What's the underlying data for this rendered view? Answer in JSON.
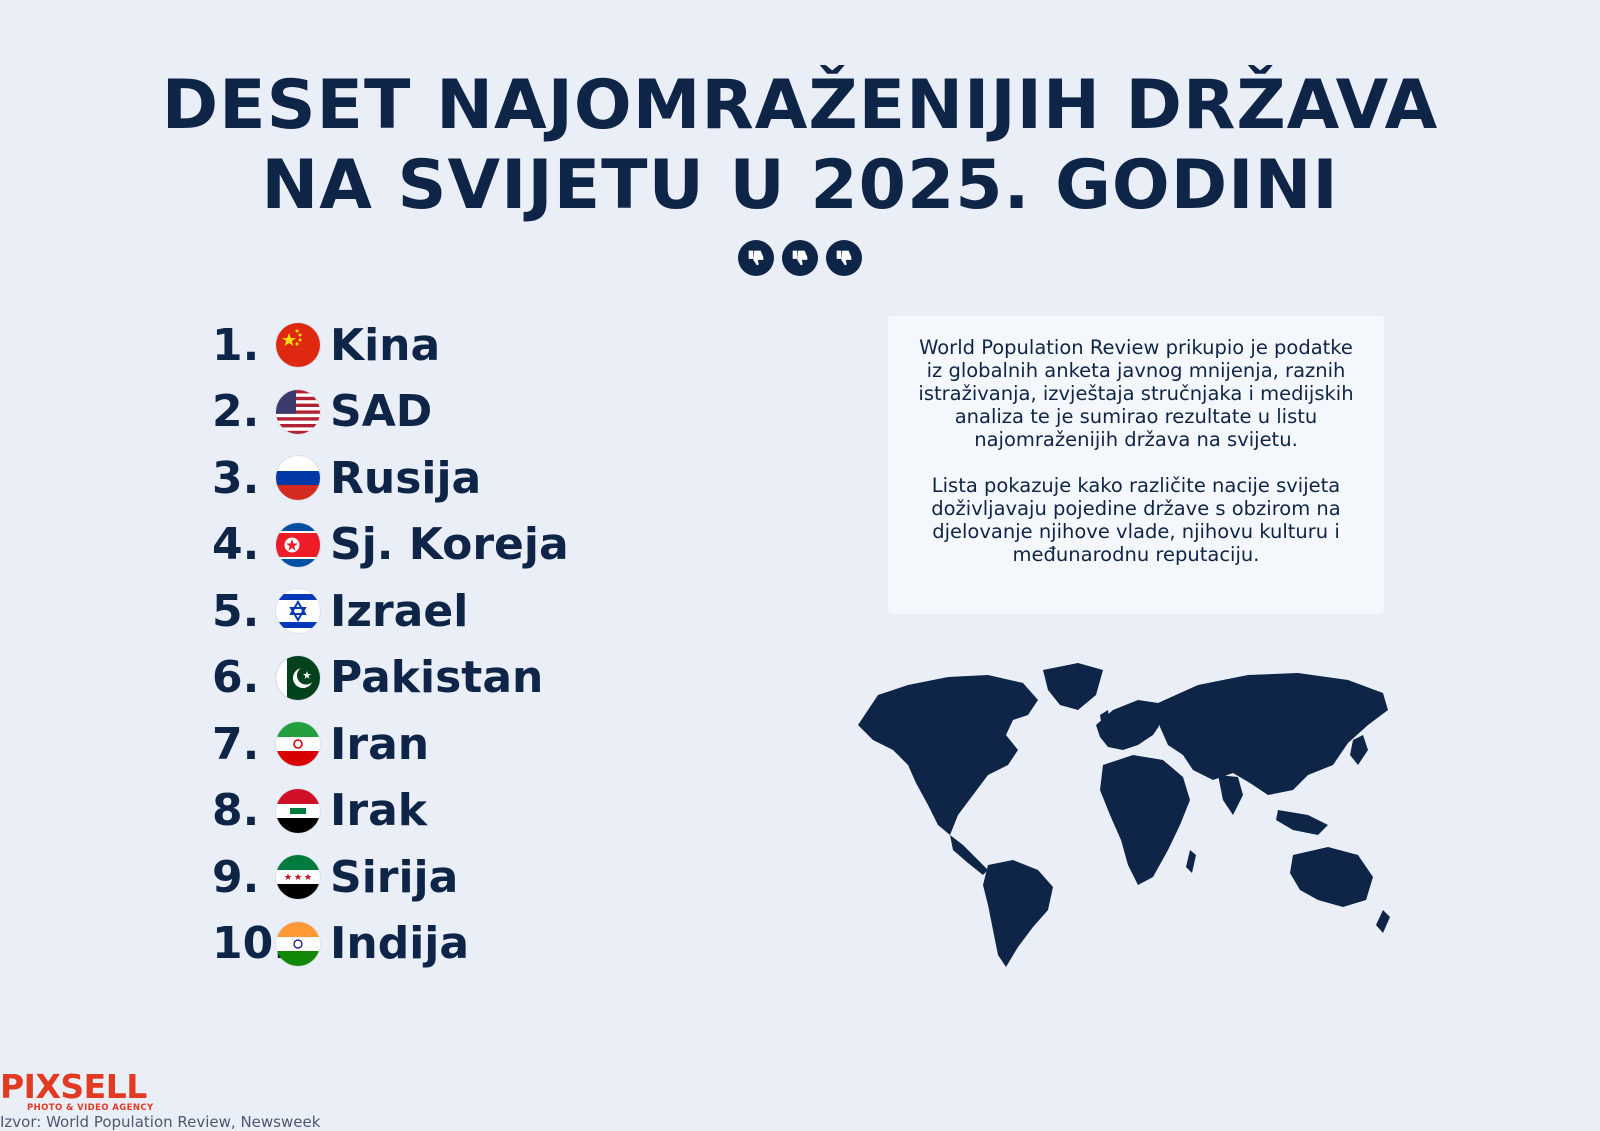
{
  "title": {
    "line1": "DESET NAJOMRAŽENIJIH DRŽAVA",
    "line2": "NA SVIJETU U 2025. GODINI"
  },
  "thumbs_icon": "thumbs-down-icon",
  "ranking": [
    {
      "rank": "1.",
      "country": "Kina",
      "flag": "china-flag-icon"
    },
    {
      "rank": "2.",
      "country": "SAD",
      "flag": "usa-flag-icon"
    },
    {
      "rank": "3.",
      "country": "Rusija",
      "flag": "russia-flag-icon"
    },
    {
      "rank": "4.",
      "country": "Sj. Koreja",
      "flag": "north-korea-flag-icon"
    },
    {
      "rank": "5.",
      "country": "Izrael",
      "flag": "israel-flag-icon"
    },
    {
      "rank": "6.",
      "country": "Pakistan",
      "flag": "pakistan-flag-icon"
    },
    {
      "rank": "7.",
      "country": "Iran",
      "flag": "iran-flag-icon"
    },
    {
      "rank": "8.",
      "country": "Irak",
      "flag": "iraq-flag-icon"
    },
    {
      "rank": "9.",
      "country": "Sirija",
      "flag": "syria-flag-icon"
    },
    {
      "rank": "10.",
      "country": "Indija",
      "flag": "india-flag-icon"
    }
  ],
  "info": {
    "paragraph1": "World Population Review prikupio je podatke iz globalnih anketa javnog mnijenja, raznih istraživanja, izvještaja stručnjaka i medijskih analiza te je sumirao rezultate u listu najomraženijih država na svijetu.",
    "paragraph2": "Lista pokazuje kako različite nacije svijeta doživljavaju pojedine države s obzirom na djelovanje njihove vlade, njihovu kulturu i međunarodnu reputaciju."
  },
  "logo": {
    "name": "PIXSELL",
    "tagline": "PHOTO & VIDEO AGENCY"
  },
  "source": "Izvor: World Population Review, Newsweek",
  "colors": {
    "background": "#e9eef7",
    "primary": "#0f2548",
    "info_box": "#f4f7fc",
    "logo": "#e23a23"
  }
}
